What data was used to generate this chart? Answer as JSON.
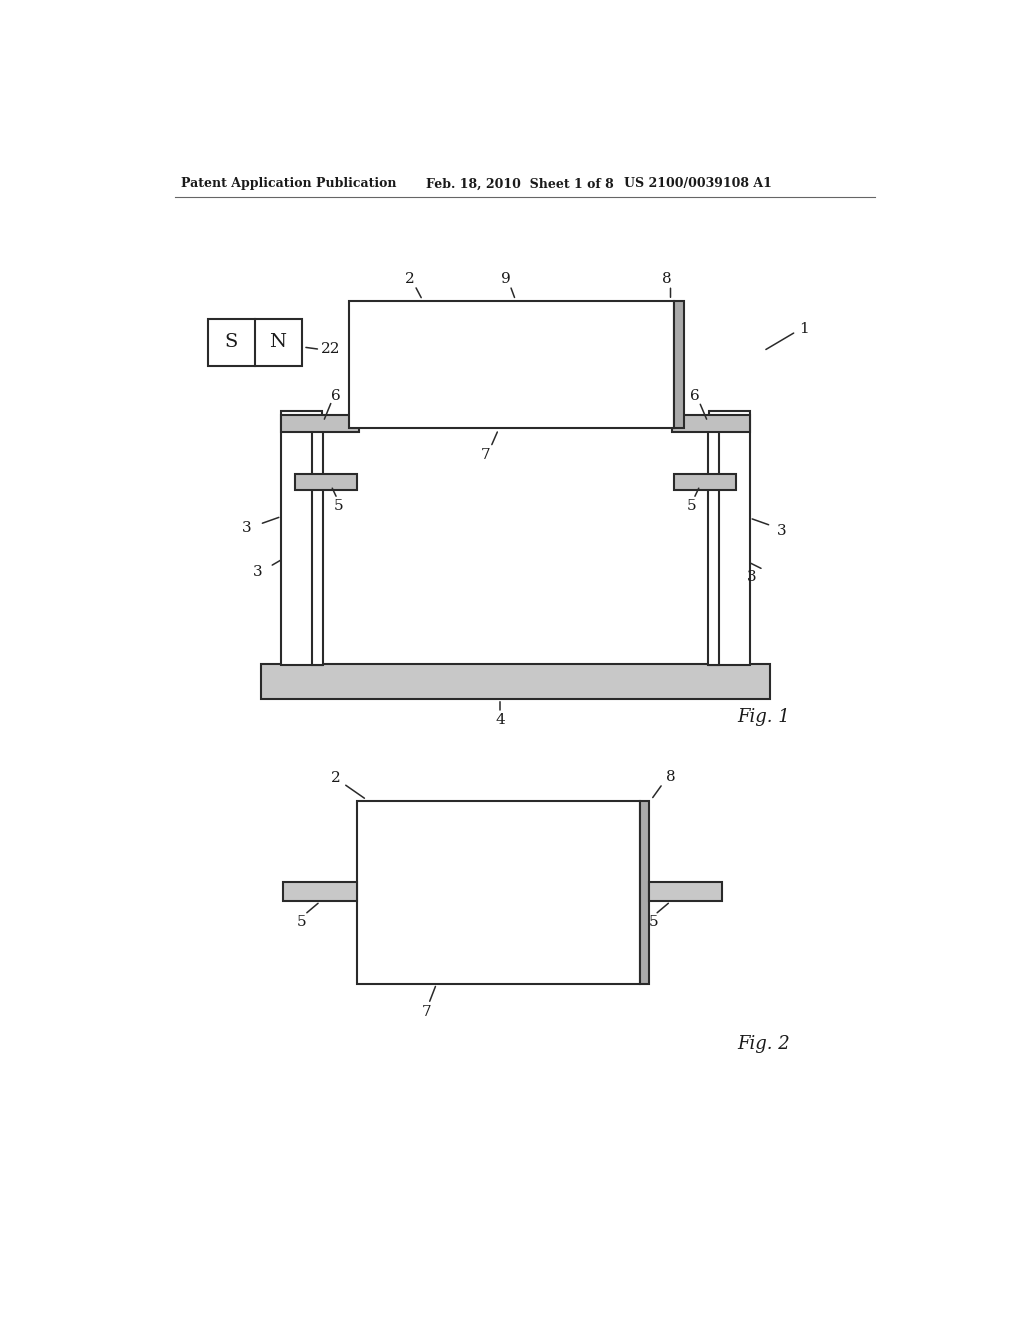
{
  "bg_color": "#ffffff",
  "header_left": "Patent Application Publication",
  "header_mid": "Feb. 18, 2010  Sheet 1 of 8",
  "header_right": "US 2100/0039108 A1",
  "line_color": "#2a2a2a",
  "line_width": 1.5,
  "text_color": "#1a1a1a",
  "fig1_label": "Fig. 1",
  "fig2_label": "Fig. 2"
}
